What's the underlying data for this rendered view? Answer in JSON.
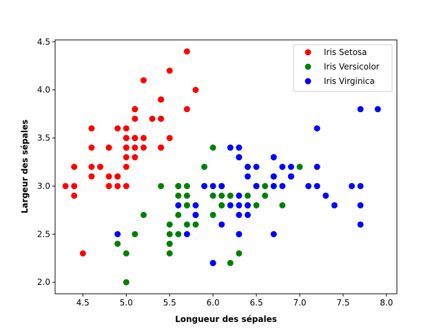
{
  "chart_data": {
    "type": "scatter",
    "title": "",
    "xlabel": "Longueur des sépales",
    "ylabel": "Largeur des sépales",
    "xlim": [
      4.18,
      8.12
    ],
    "ylim": [
      1.88,
      4.52
    ],
    "xticks": [
      "4.5",
      "5.0",
      "5.5",
      "6.0",
      "6.5",
      "7.0",
      "7.5",
      "8.0"
    ],
    "yticks": [
      "2.0",
      "2.5",
      "3.0",
      "3.5",
      "4.0",
      "4.5"
    ],
    "grid": false,
    "legend_position": "top-right",
    "series": [
      {
        "name": "Iris Setosa",
        "color": "#ff0000",
        "points": [
          [
            5.1,
            3.5
          ],
          [
            4.9,
            3.0
          ],
          [
            4.7,
            3.2
          ],
          [
            4.6,
            3.1
          ],
          [
            5.0,
            3.6
          ],
          [
            5.4,
            3.9
          ],
          [
            4.6,
            3.4
          ],
          [
            5.0,
            3.4
          ],
          [
            4.4,
            2.9
          ],
          [
            4.9,
            3.1
          ],
          [
            5.4,
            3.7
          ],
          [
            4.8,
            3.4
          ],
          [
            4.8,
            3.0
          ],
          [
            4.3,
            3.0
          ],
          [
            5.8,
            4.0
          ],
          [
            5.7,
            4.4
          ],
          [
            5.4,
            3.9
          ],
          [
            5.1,
            3.5
          ],
          [
            5.7,
            3.8
          ],
          [
            5.1,
            3.8
          ],
          [
            5.4,
            3.4
          ],
          [
            5.1,
            3.7
          ],
          [
            4.6,
            3.6
          ],
          [
            5.1,
            3.3
          ],
          [
            4.8,
            3.4
          ],
          [
            5.0,
            3.0
          ],
          [
            5.0,
            3.4
          ],
          [
            5.2,
            3.5
          ],
          [
            5.2,
            3.4
          ],
          [
            4.7,
            3.2
          ],
          [
            4.8,
            3.1
          ],
          [
            5.4,
            3.4
          ],
          [
            5.2,
            4.1
          ],
          [
            5.5,
            4.2
          ],
          [
            4.9,
            3.1
          ],
          [
            5.0,
            3.2
          ],
          [
            5.5,
            3.5
          ],
          [
            4.9,
            3.6
          ],
          [
            4.4,
            3.0
          ],
          [
            5.1,
            3.4
          ],
          [
            5.0,
            3.5
          ],
          [
            4.5,
            2.3
          ],
          [
            4.4,
            3.2
          ],
          [
            5.0,
            3.5
          ],
          [
            5.1,
            3.8
          ],
          [
            4.8,
            3.0
          ],
          [
            5.1,
            3.8
          ],
          [
            4.6,
            3.2
          ],
          [
            5.3,
            3.7
          ],
          [
            5.0,
            3.3
          ]
        ]
      },
      {
        "name": "Iris Versicolor",
        "color": "#008000",
        "points": [
          [
            7.0,
            3.2
          ],
          [
            6.4,
            3.2
          ],
          [
            6.9,
            3.1
          ],
          [
            5.5,
            2.3
          ],
          [
            6.5,
            2.8
          ],
          [
            5.7,
            2.8
          ],
          [
            6.3,
            3.3
          ],
          [
            4.9,
            2.4
          ],
          [
            6.6,
            2.9
          ],
          [
            5.2,
            2.7
          ],
          [
            5.0,
            2.0
          ],
          [
            5.9,
            3.0
          ],
          [
            6.0,
            2.2
          ],
          [
            6.1,
            2.9
          ],
          [
            5.6,
            2.9
          ],
          [
            6.7,
            3.1
          ],
          [
            5.6,
            3.0
          ],
          [
            5.8,
            2.7
          ],
          [
            6.2,
            2.2
          ],
          [
            5.6,
            2.5
          ],
          [
            5.9,
            3.2
          ],
          [
            6.1,
            2.8
          ],
          [
            6.3,
            2.5
          ],
          [
            6.1,
            2.8
          ],
          [
            6.4,
            2.9
          ],
          [
            6.6,
            3.0
          ],
          [
            6.8,
            2.8
          ],
          [
            6.7,
            3.0
          ],
          [
            6.0,
            2.9
          ],
          [
            5.7,
            2.6
          ],
          [
            5.5,
            2.4
          ],
          [
            5.5,
            2.4
          ],
          [
            5.8,
            2.7
          ],
          [
            6.0,
            2.7
          ],
          [
            5.4,
            3.0
          ],
          [
            6.0,
            3.4
          ],
          [
            6.7,
            3.1
          ],
          [
            6.3,
            2.3
          ],
          [
            5.6,
            3.0
          ],
          [
            5.5,
            2.5
          ],
          [
            5.5,
            2.6
          ],
          [
            6.1,
            3.0
          ],
          [
            5.8,
            2.6
          ],
          [
            5.0,
            2.3
          ],
          [
            5.6,
            2.7
          ],
          [
            5.7,
            3.0
          ],
          [
            5.7,
            2.9
          ],
          [
            6.2,
            2.9
          ],
          [
            5.1,
            2.5
          ],
          [
            5.7,
            2.8
          ]
        ]
      },
      {
        "name": "Iris Virginica",
        "color": "#0000ff",
        "points": [
          [
            6.3,
            3.3
          ],
          [
            5.8,
            2.7
          ],
          [
            7.1,
            3.0
          ],
          [
            6.3,
            2.9
          ],
          [
            6.5,
            3.0
          ],
          [
            7.6,
            3.0
          ],
          [
            4.9,
            2.5
          ],
          [
            7.3,
            2.9
          ],
          [
            6.7,
            2.5
          ],
          [
            7.2,
            3.6
          ],
          [
            6.5,
            3.2
          ],
          [
            6.4,
            2.7
          ],
          [
            6.8,
            3.0
          ],
          [
            5.7,
            2.5
          ],
          [
            5.8,
            2.8
          ],
          [
            6.4,
            3.2
          ],
          [
            6.5,
            3.0
          ],
          [
            7.7,
            3.8
          ],
          [
            7.7,
            2.6
          ],
          [
            6.0,
            2.2
          ],
          [
            6.9,
            3.2
          ],
          [
            5.6,
            2.8
          ],
          [
            7.7,
            2.8
          ],
          [
            6.3,
            2.7
          ],
          [
            6.7,
            3.3
          ],
          [
            7.2,
            3.2
          ],
          [
            6.2,
            2.8
          ],
          [
            6.1,
            3.0
          ],
          [
            6.4,
            2.8
          ],
          [
            7.2,
            3.0
          ],
          [
            7.4,
            2.8
          ],
          [
            7.9,
            3.8
          ],
          [
            6.4,
            2.8
          ],
          [
            6.3,
            2.8
          ],
          [
            6.1,
            2.6
          ],
          [
            7.7,
            3.0
          ],
          [
            6.3,
            3.4
          ],
          [
            6.4,
            3.1
          ],
          [
            6.0,
            3.0
          ],
          [
            6.9,
            3.1
          ],
          [
            6.7,
            3.1
          ],
          [
            6.9,
            3.1
          ],
          [
            5.8,
            2.7
          ],
          [
            6.8,
            3.2
          ],
          [
            6.7,
            3.3
          ],
          [
            6.7,
            3.0
          ],
          [
            6.3,
            2.5
          ],
          [
            6.5,
            3.0
          ],
          [
            6.2,
            3.4
          ],
          [
            5.9,
            3.0
          ]
        ]
      }
    ]
  }
}
